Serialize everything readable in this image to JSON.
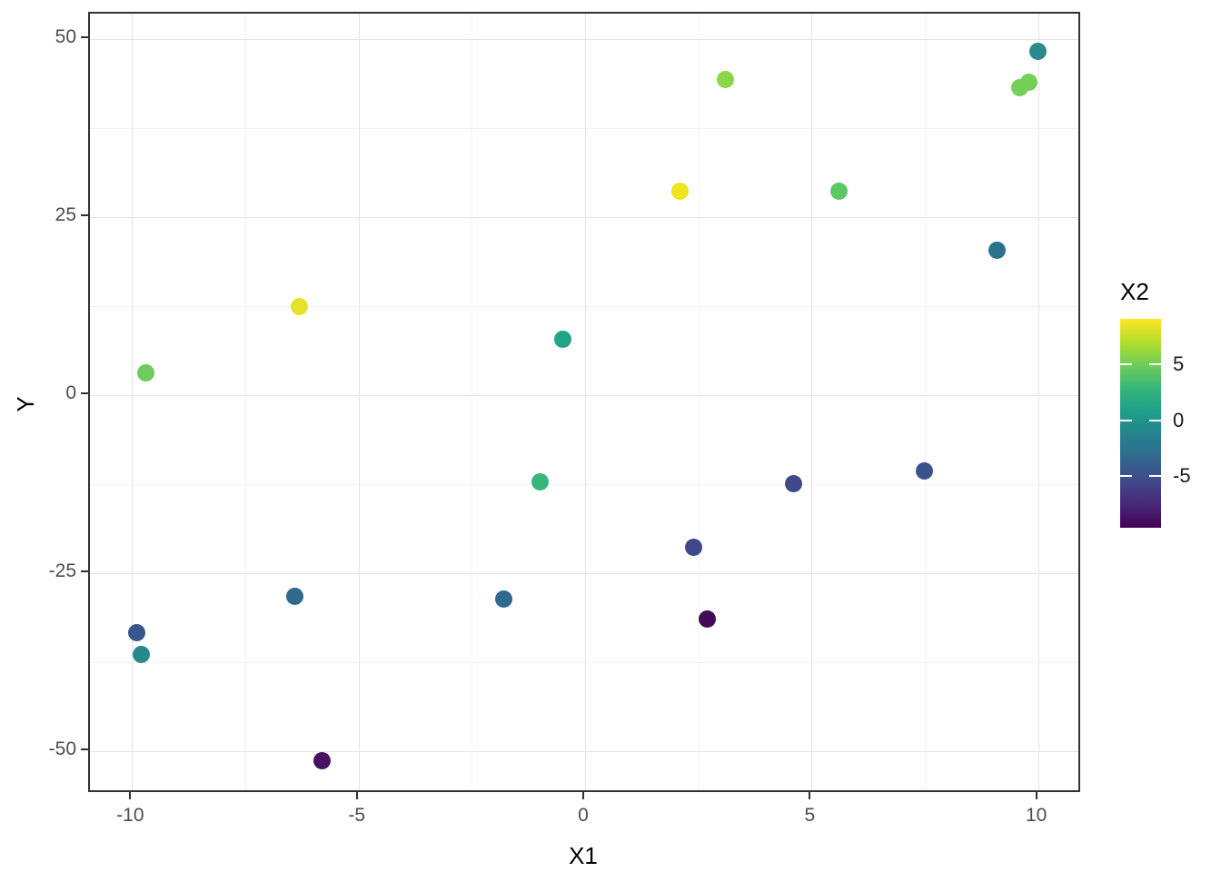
{
  "chart_data": {
    "type": "scatter",
    "title": "",
    "xlabel": "X1",
    "ylabel": "Y",
    "x_range": [
      -10.93,
      10.97
    ],
    "y_range": [
      -56.0,
      53.6
    ],
    "x_ticks": [
      -10,
      -5,
      0,
      5,
      10
    ],
    "x_minor_ticks": [
      -7.5,
      -2.5,
      2.5,
      7.5
    ],
    "y_ticks": [
      50,
      25,
      0,
      -25,
      -50
    ],
    "y_minor_ticks": [
      37.5,
      12.5,
      -12.5,
      -37.5
    ],
    "grid": "major and minor, light gray on white, dark panel border",
    "points": [
      {
        "x1": -9.7,
        "y": 3.2,
        "x2": 4.3,
        "color": "#6ECB5C"
      },
      {
        "x1": -6.3,
        "y": 12.5,
        "x2": 7.8,
        "color": "#E6E229"
      },
      {
        "x1": -0.5,
        "y": 7.9,
        "x2": 1.1,
        "color": "#21A585"
      },
      {
        "x1": 2.1,
        "y": 28.6,
        "x2": 8.4,
        "color": "#F0E51D"
      },
      {
        "x1": 3.1,
        "y": 44.4,
        "x2": 5.0,
        "color": "#8BD646"
      },
      {
        "x1": 5.6,
        "y": 28.7,
        "x2": 3.5,
        "color": "#5EC962"
      },
      {
        "x1": 10.0,
        "y": 48.3,
        "x2": -0.4,
        "color": "#2A8A8D"
      },
      {
        "x1": 9.6,
        "y": 43.2,
        "x2": 4.2,
        "color": "#73D056"
      },
      {
        "x1": 9.8,
        "y": 44.0,
        "x2": 4.2,
        "color": "#73D056"
      },
      {
        "x1": 9.1,
        "y": 20.4,
        "x2": -2.1,
        "color": "#2C728E"
      },
      {
        "x1": -9.9,
        "y": -33.3,
        "x2": -4.6,
        "color": "#39568C"
      },
      {
        "x1": -9.8,
        "y": -36.4,
        "x2": -0.5,
        "color": "#25898E"
      },
      {
        "x1": -6.4,
        "y": -28.2,
        "x2": -3.1,
        "color": "#31688E"
      },
      {
        "x1": -5.8,
        "y": -51.4,
        "x2": -8.7,
        "color": "#471063"
      },
      {
        "x1": -1.8,
        "y": -28.6,
        "x2": -3.1,
        "color": "#31688E"
      },
      {
        "x1": -1.0,
        "y": -12.2,
        "x2": 2.0,
        "color": "#38B77B"
      },
      {
        "x1": 2.4,
        "y": -21.4,
        "x2": -5.7,
        "color": "#3F4889"
      },
      {
        "x1": 2.7,
        "y": -31.4,
        "x2": -9.2,
        "color": "#440B57"
      },
      {
        "x1": 4.6,
        "y": -12.4,
        "x2": -5.7,
        "color": "#3F4889"
      },
      {
        "x1": 7.5,
        "y": -10.6,
        "x2": -4.9,
        "color": "#3B528B"
      }
    ],
    "legend": {
      "title": "X2",
      "position": "right",
      "ticks": [
        5,
        0,
        -5
      ],
      "bar_value_range": [
        9.1,
        -9.6
      ],
      "gradient_top_to_bottom": [
        "#FDE725",
        "#B4DE2C",
        "#6DCD59",
        "#35B779",
        "#1F9E89",
        "#26828E",
        "#31688E",
        "#3E4A89",
        "#482878",
        "#440154"
      ]
    }
  },
  "styles": {
    "background": "#FFFFFF",
    "panel_border": "#333333",
    "grid_major": "#E4E4E4",
    "grid_minor": "#F2F2F2",
    "tick_mark": "#333333",
    "tick_label": "#4D4D4D",
    "axis_title": "#000000",
    "legend_tick": "#FFFFFF"
  }
}
